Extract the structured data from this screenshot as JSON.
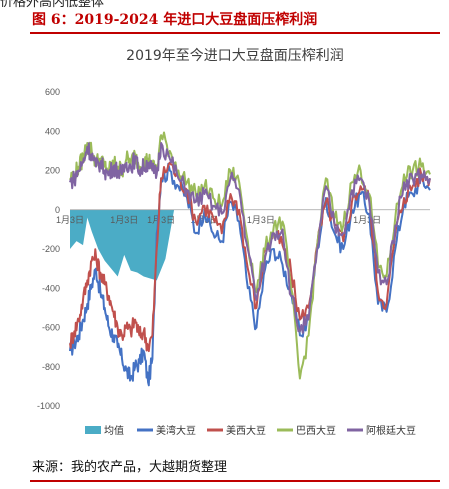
{
  "page": {
    "top_text": "价格外高内低整体",
    "figure_title": "图 6：2019-2024 年进口大豆盘面压榨利润",
    "source": "来源：我的农产品，大越期货整理"
  },
  "chart_data": {
    "type": "line",
    "title": "2019年至今进口大豆盘面压榨利润",
    "xlabel": "",
    "ylabel": "",
    "ylim": [
      -1000,
      600
    ],
    "yticks": [
      600,
      400,
      200,
      0,
      -200,
      -400,
      -600,
      -800,
      -1000
    ],
    "x_tick_labels": [
      "1月3日",
      "1月3日",
      "1月3日",
      "1月3日",
      "1月3日",
      "1月3日"
    ],
    "x_tick_positions": [
      0.0,
      0.25,
      0.42,
      0.62,
      0.88,
      1.37
    ],
    "x_range": [
      0,
      1.66
    ],
    "grid": false,
    "legend_position": "bottom",
    "colors": {
      "均值": "#4bacc6",
      "美湾大豆": "#4472c4",
      "美西大豆": "#c0504d",
      "巴西大豆": "#9bbb59",
      "阿根廷大豆": "#8064a2"
    },
    "mean_area": {
      "name": "均值",
      "x": [
        0.0,
        0.03,
        0.06,
        0.08,
        0.1,
        0.13,
        0.16,
        0.19,
        0.22,
        0.25,
        0.28,
        0.31,
        0.34,
        0.37,
        0.4,
        0.44,
        0.48,
        0.52,
        0.56,
        0.6,
        0.64,
        0.68,
        0.72,
        0.76,
        0.8,
        0.84,
        0.88,
        0.92,
        0.96,
        1.0,
        1.04,
        1.08,
        1.12,
        1.16,
        1.2,
        1.24,
        1.28,
        1.32,
        1.36,
        1.4,
        1.44,
        1.48,
        1.52,
        1.56,
        1.6,
        1.64
      ],
      "values": [
        -200,
        -160,
        -180,
        -40,
        -110,
        -200,
        -260,
        -300,
        -340,
        -230,
        -310,
        -320,
        -340,
        -350,
        -360,
        -250,
        0,
        0,
        0,
        0,
        0,
        0,
        0,
        0,
        0,
        0,
        0,
        0,
        0,
        0,
        0,
        0,
        0,
        0,
        0,
        0,
        0,
        0,
        0,
        0,
        0,
        0,
        0,
        0,
        0,
        0
      ]
    },
    "series": [
      {
        "name": "美湾大豆",
        "x": [
          0.0,
          0.02,
          0.04,
          0.06,
          0.08,
          0.1,
          0.12,
          0.14,
          0.16,
          0.18,
          0.2,
          0.22,
          0.24,
          0.26,
          0.28,
          0.3,
          0.32,
          0.34,
          0.36,
          0.38,
          0.4,
          0.42,
          0.46,
          0.5,
          0.54,
          0.58,
          0.62,
          0.66,
          0.7,
          0.74,
          0.78,
          0.82,
          0.86,
          0.9,
          0.94,
          0.98,
          1.02,
          1.06,
          1.1,
          1.14,
          1.18,
          1.22,
          1.26,
          1.3,
          1.34,
          1.38,
          1.42,
          1.46,
          1.5,
          1.54,
          1.58,
          1.62,
          1.66
        ],
        "values": [
          -720,
          -680,
          -640,
          -560,
          -480,
          -380,
          -300,
          -420,
          -500,
          -600,
          -640,
          -700,
          -760,
          -820,
          -860,
          -800,
          -780,
          -720,
          -880,
          -760,
          -120,
          160,
          200,
          120,
          60,
          -120,
          0,
          -120,
          -160,
          40,
          -60,
          -400,
          -600,
          -300,
          -200,
          -280,
          -420,
          -640,
          -560,
          -200,
          60,
          -120,
          -200,
          0,
          80,
          -20,
          -480,
          -520,
          -200,
          40,
          80,
          160,
          100
        ]
      },
      {
        "name": "美西大豆",
        "x": [
          0.0,
          0.02,
          0.04,
          0.06,
          0.08,
          0.1,
          0.12,
          0.14,
          0.16,
          0.18,
          0.2,
          0.22,
          0.24,
          0.26,
          0.28,
          0.3,
          0.32,
          0.34,
          0.36,
          0.38,
          0.4,
          0.42,
          0.46,
          0.5,
          0.54,
          0.58,
          0.62,
          0.66,
          0.7,
          0.74,
          0.78,
          0.82,
          0.86,
          0.9,
          0.94,
          0.98,
          1.02,
          1.06,
          1.1,
          1.14,
          1.18,
          1.22,
          1.26,
          1.3,
          1.34,
          1.38,
          1.42,
          1.46,
          1.5,
          1.54,
          1.58,
          1.62,
          1.66
        ],
        "values": [
          -680,
          -620,
          -560,
          -460,
          -360,
          -260,
          -240,
          -320,
          -380,
          -440,
          -520,
          -600,
          -640,
          -600,
          -620,
          -560,
          -640,
          -620,
          -700,
          -640,
          -200,
          160,
          240,
          160,
          100,
          -60,
          20,
          -40,
          -120,
          80,
          0,
          -300,
          -500,
          -200,
          -120,
          -180,
          -320,
          -560,
          -500,
          -180,
          40,
          -80,
          -160,
          40,
          120,
          60,
          -420,
          -480,
          -120,
          60,
          120,
          180,
          160
        ]
      },
      {
        "name": "巴西大豆",
        "x": [
          0.0,
          0.02,
          0.04,
          0.06,
          0.08,
          0.1,
          0.12,
          0.14,
          0.16,
          0.18,
          0.2,
          0.22,
          0.24,
          0.26,
          0.28,
          0.3,
          0.32,
          0.34,
          0.36,
          0.38,
          0.4,
          0.42,
          0.46,
          0.5,
          0.54,
          0.58,
          0.62,
          0.66,
          0.7,
          0.74,
          0.78,
          0.82,
          0.86,
          0.9,
          0.94,
          0.98,
          1.02,
          1.06,
          1.1,
          1.14,
          1.18,
          1.22,
          1.26,
          1.3,
          1.34,
          1.38,
          1.42,
          1.46,
          1.5,
          1.54,
          1.58,
          1.62,
          1.66
        ],
        "values": [
          160,
          180,
          220,
          260,
          340,
          300,
          240,
          260,
          220,
          200,
          240,
          220,
          200,
          260,
          240,
          280,
          220,
          240,
          260,
          220,
          200,
          380,
          300,
          200,
          140,
          80,
          120,
          60,
          20,
          200,
          140,
          -160,
          -420,
          -200,
          -80,
          -60,
          -400,
          -860,
          -640,
          -180,
          160,
          -40,
          -80,
          140,
          200,
          80,
          -280,
          -340,
          -40,
          180,
          200,
          220,
          180
        ]
      },
      {
        "name": "阿根廷大豆",
        "x": [
          0.0,
          0.02,
          0.04,
          0.06,
          0.08,
          0.1,
          0.12,
          0.14,
          0.16,
          0.18,
          0.2,
          0.22,
          0.24,
          0.26,
          0.28,
          0.3,
          0.32,
          0.34,
          0.36,
          0.38,
          0.4,
          0.42,
          0.46,
          0.5,
          0.54,
          0.58,
          0.62,
          0.66,
          0.7,
          0.74,
          0.78,
          0.82,
          0.86,
          0.9,
          0.94,
          0.98,
          1.02,
          1.06,
          1.1,
          1.14,
          1.18,
          1.22,
          1.26,
          1.3,
          1.34,
          1.38,
          1.42,
          1.46,
          1.5,
          1.54,
          1.58,
          1.62,
          1.66
        ],
        "values": [
          140,
          160,
          200,
          240,
          320,
          280,
          220,
          240,
          200,
          180,
          220,
          200,
          180,
          240,
          220,
          260,
          200,
          220,
          240,
          200,
          180,
          340,
          260,
          160,
          100,
          40,
          80,
          20,
          -20,
          160,
          100,
          -200,
          -460,
          -240,
          -120,
          -100,
          -440,
          -620,
          -560,
          -200,
          120,
          -80,
          -120,
          100,
          160,
          40,
          -320,
          -380,
          -80,
          140,
          160,
          180,
          160
        ]
      }
    ]
  }
}
